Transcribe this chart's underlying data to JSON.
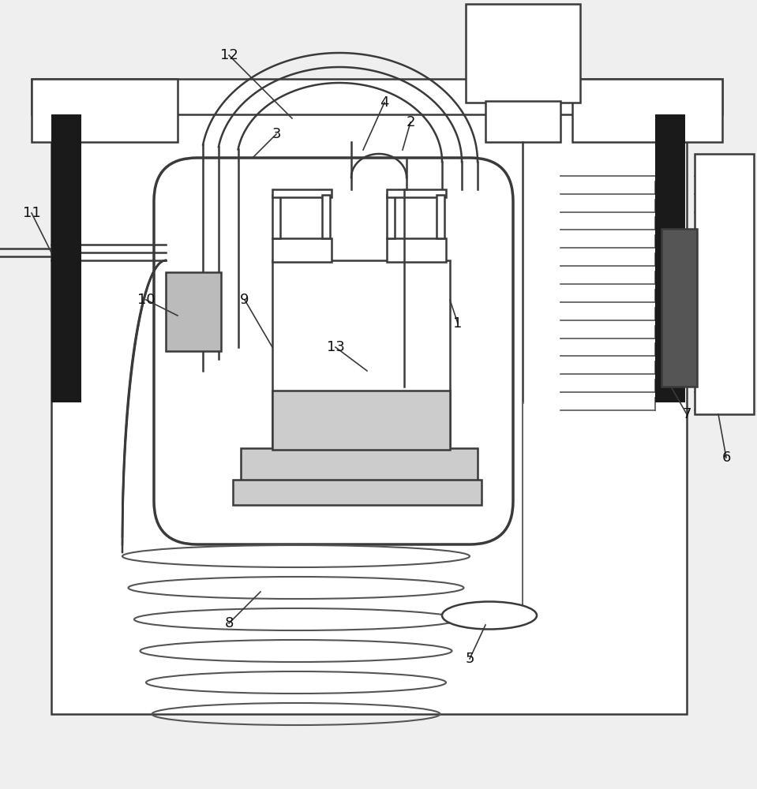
{
  "bg_color": "#efefef",
  "line_color": "#3a3a3a",
  "dark_color": "#111111",
  "gray_color": "#888888",
  "light_gray": "#cccccc",
  "fig_width": 9.59,
  "fig_height": 10.0,
  "label_fontsize": 13
}
